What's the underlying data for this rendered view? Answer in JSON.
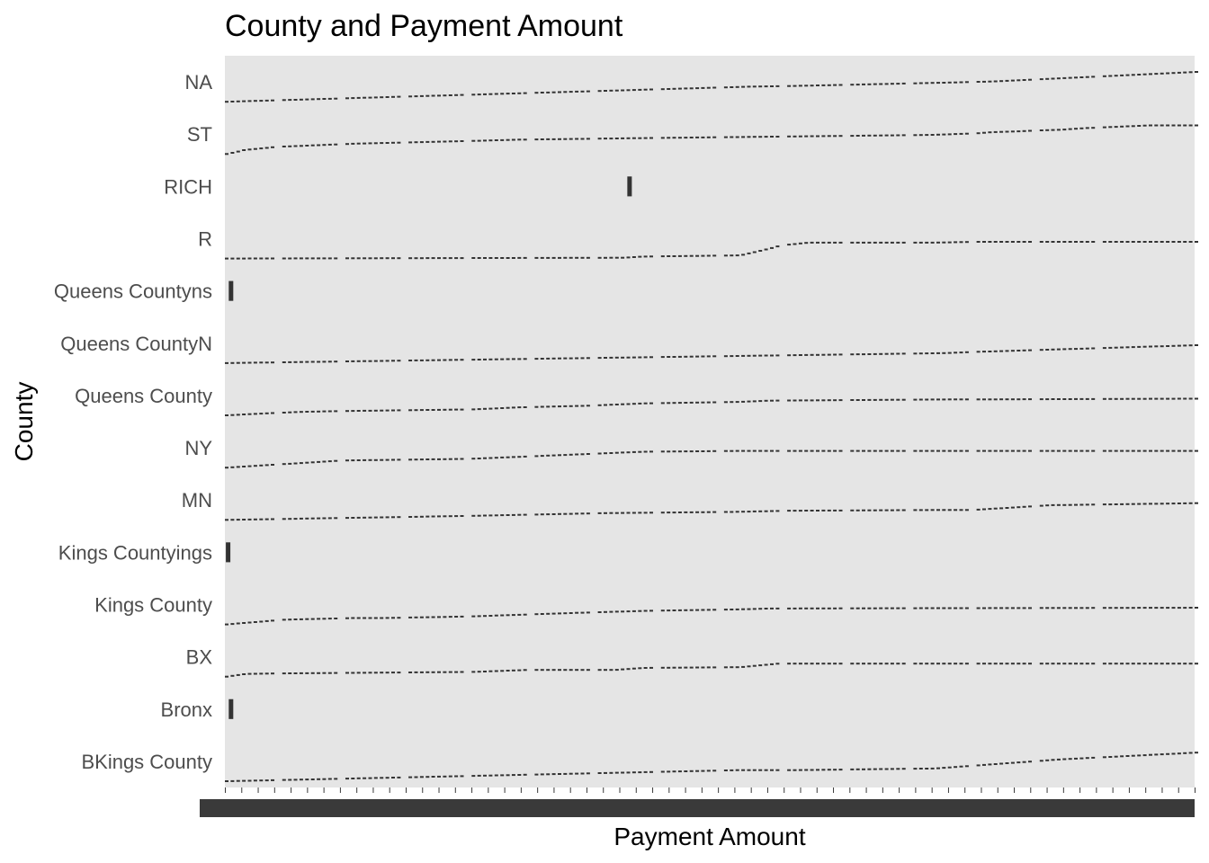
{
  "chart_data": {
    "type": "scatter",
    "title": "County and Payment Amount",
    "xlabel": "Payment Amount",
    "ylabel": "County",
    "x_scale": "categorical",
    "x_tick_labels_note": "overplotted and unreadable",
    "grid": false,
    "legend": "none",
    "categories": [
      "NA",
      "ST",
      "RICH",
      "R",
      "Queens Countyns",
      "Queens CountyN",
      "Queens County",
      "NY",
      "MN",
      "Kings Countyings",
      "Kings County",
      "BX",
      "Bronx",
      "BKings County"
    ],
    "colors": {
      "panel_background": "#e5e5e5",
      "point": "#333333",
      "tick_label": "#4d4d4d",
      "tick_block": "#3a3a3a"
    },
    "series": [
      {
        "category": "NA",
        "points": [
          [
            0.0,
            0.0
          ],
          [
            0.54,
            0.38
          ],
          [
            0.59,
            0.4
          ],
          [
            0.74,
            0.48
          ],
          [
            0.79,
            0.51
          ],
          [
            1.0,
            0.75
          ]
        ]
      },
      {
        "category": "ST",
        "points": [
          [
            0.0,
            0.0
          ],
          [
            0.01,
            0.05
          ],
          [
            0.018,
            0.1
          ],
          [
            0.052,
            0.18
          ],
          [
            0.132,
            0.26
          ],
          [
            0.255,
            0.33
          ],
          [
            0.27,
            0.34
          ],
          [
            0.285,
            0.35
          ],
          [
            0.298,
            0.36
          ],
          [
            0.428,
            0.4
          ],
          [
            0.576,
            0.44
          ],
          [
            0.726,
            0.48
          ],
          [
            0.773,
            0.52
          ],
          [
            0.79,
            0.55
          ],
          [
            0.815,
            0.57
          ],
          [
            0.845,
            0.6
          ],
          [
            0.86,
            0.61
          ],
          [
            0.884,
            0.65
          ],
          [
            0.952,
            0.72
          ]
        ]
      },
      {
        "category": "RICH",
        "vertical_bar_x": 0.415,
        "bar_span": 0.38
      },
      {
        "category": "R",
        "points": [
          [
            0.0,
            0.0
          ],
          [
            0.41,
            0.02
          ],
          [
            0.43,
            0.05
          ],
          [
            0.53,
            0.08
          ],
          [
            0.56,
            0.25
          ],
          [
            0.57,
            0.32
          ],
          [
            0.58,
            0.35
          ],
          [
            0.6,
            0.4
          ],
          [
            0.73,
            0.4
          ],
          [
            0.77,
            0.42
          ]
        ]
      },
      {
        "category": "Queens Countyns",
        "vertical_bar_x": 0.004,
        "bar_span": 0.38
      },
      {
        "category": "Queens CountyN",
        "points": [
          [
            0.0,
            0.0
          ],
          [
            0.53,
            0.18
          ],
          [
            0.59,
            0.2
          ],
          [
            0.74,
            0.25
          ],
          [
            0.77,
            0.28
          ],
          [
            1.0,
            0.45
          ]
        ]
      },
      {
        "category": "Queens County",
        "points": [
          [
            0.0,
            0.0
          ],
          [
            0.04,
            0.05
          ],
          [
            0.08,
            0.09
          ],
          [
            0.125,
            0.11
          ],
          [
            0.255,
            0.15
          ],
          [
            0.3,
            0.2
          ],
          [
            0.37,
            0.24
          ],
          [
            0.43,
            0.3
          ],
          [
            0.53,
            0.34
          ],
          [
            0.56,
            0.37
          ],
          [
            0.74,
            0.4
          ],
          [
            0.77,
            0.4
          ],
          [
            1.0,
            0.42
          ]
        ]
      },
      {
        "category": "NY",
        "points": [
          [
            0.0,
            0.0
          ],
          [
            0.12,
            0.18
          ],
          [
            0.25,
            0.22
          ],
          [
            0.28,
            0.25
          ],
          [
            0.43,
            0.4
          ],
          [
            0.53,
            0.42
          ],
          [
            0.58,
            0.42
          ],
          [
            0.73,
            0.42
          ],
          [
            0.77,
            0.42
          ]
        ]
      },
      {
        "category": "MN",
        "points": [
          [
            0.0,
            0.0
          ],
          [
            0.25,
            0.1
          ],
          [
            0.39,
            0.17
          ],
          [
            0.52,
            0.2
          ],
          [
            0.58,
            0.23
          ],
          [
            0.74,
            0.25
          ],
          [
            0.77,
            0.25
          ],
          [
            0.85,
            0.37
          ],
          [
            1.0,
            0.42
          ]
        ]
      },
      {
        "category": "Kings Countyings",
        "vertical_bar_x": 0.001,
        "bar_span": 0.38
      },
      {
        "category": "Kings County",
        "points": [
          [
            0.0,
            0.0
          ],
          [
            0.06,
            0.12
          ],
          [
            0.13,
            0.16
          ],
          [
            0.16,
            0.16
          ],
          [
            0.25,
            0.2
          ],
          [
            0.36,
            0.29
          ],
          [
            0.43,
            0.34
          ],
          [
            0.53,
            0.38
          ],
          [
            0.56,
            0.4
          ],
          [
            0.74,
            0.41
          ],
          [
            0.77,
            0.41
          ],
          [
            1.0,
            0.42
          ]
        ]
      },
      {
        "category": "BX",
        "points": [
          [
            0.0,
            0.0
          ],
          [
            0.02,
            0.07
          ],
          [
            0.045,
            0.08
          ],
          [
            0.255,
            0.12
          ],
          [
            0.31,
            0.17
          ],
          [
            0.4,
            0.17
          ],
          [
            0.43,
            0.22
          ],
          [
            0.53,
            0.24
          ],
          [
            0.57,
            0.33
          ],
          [
            0.74,
            0.33
          ],
          [
            0.77,
            0.33
          ],
          [
            1.0,
            0.33
          ]
        ]
      },
      {
        "category": "Bronx",
        "vertical_bar_x": 0.004,
        "bar_span": 0.38
      },
      {
        "category": "BKings County",
        "points": [
          [
            0.0,
            0.0
          ],
          [
            0.53,
            0.28
          ],
          [
            0.59,
            0.28
          ],
          [
            0.69,
            0.31
          ],
          [
            0.73,
            0.32
          ],
          [
            0.86,
            0.55
          ],
          [
            1.0,
            0.72
          ]
        ]
      }
    ]
  }
}
